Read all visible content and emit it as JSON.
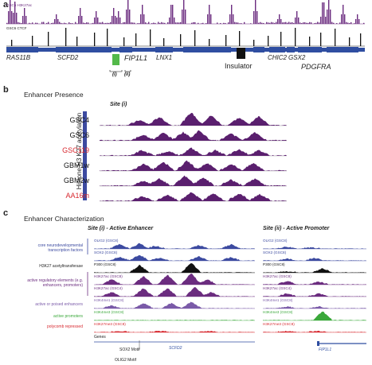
{
  "panel_a": {
    "letter": "a",
    "track_labels": [
      "GSC6 H3K27ac",
      "GSC6 CTCF"
    ],
    "genes": [
      "RAS11B",
      "SCFD2",
      "FIP1L1",
      "LNX1",
      "CHIC2",
      "GSX2",
      "PDGFRA"
    ],
    "site_labels": [
      "(i)",
      "(ii)"
    ],
    "insulator_label": "Insulator",
    "colors": {
      "h3k27ac": "#6b2c7f",
      "ctcf": "#111111",
      "gene": "#2f4ea1",
      "site": "#53b94a"
    }
  },
  "panel_b": {
    "letter": "b",
    "title": "Enhancer Presence",
    "site": "Site (i)",
    "axis_label": "Histone H3 K27 acetylation",
    "rows": [
      {
        "label": "GSC4",
        "color": "#111111"
      },
      {
        "label": "GSC6",
        "color": "#111111"
      },
      {
        "label": "GSC119",
        "color": "#d7282f"
      },
      {
        "label": "GBM1w",
        "color": "#111111"
      },
      {
        "label": "GBM2w",
        "color": "#111111"
      },
      {
        "label": "AA16m",
        "color": "#d7282f"
      }
    ],
    "colors": {
      "track": "#5a1f6e",
      "bar": "#3c4aa0"
    }
  },
  "panel_c": {
    "letter": "c",
    "title": "Enhancer Characterization",
    "site_left": "Site (i) - Active Enhancer",
    "site_right": "Site (ii) - Active Promoter",
    "categories": [
      {
        "text": "core neurodevelopmental transcription factors",
        "color": "#3c4aa0"
      },
      {
        "text": "H3K27 acetyltransferase",
        "color": "#111111"
      },
      {
        "text": "active regulatory elements (e.g. enhancers, promoters)",
        "color": "#6b2c7f"
      },
      {
        "text": "active or poised enhancers",
        "color": "#7a5aa8"
      },
      {
        "text": "active promoters",
        "color": "#3aa83a"
      },
      {
        "text": "polycomb repressed",
        "color": "#d7282f"
      }
    ],
    "tracks": [
      {
        "label": "OLIG2",
        "sub": "(GSC8)",
        "color": "#3c4aa0"
      },
      {
        "label": "SOX2",
        "sub": "(GSC8)",
        "color": "#3c4aa0"
      },
      {
        "label": "P300",
        "sub": "(GSC8)",
        "color": "#111111"
      },
      {
        "label": "H3K27ac",
        "sub": "(GSC8)",
        "color": "#6b2c7f"
      },
      {
        "label": "H3K27ac",
        "sub": "(GSC4)",
        "color": "#6b2c7f"
      },
      {
        "label": "H3K4me1",
        "sub": "(GSC8)",
        "color": "#7a5aa8"
      },
      {
        "label": "H3K4me3",
        "sub": "(GSC8)",
        "color": "#3aa83a"
      },
      {
        "label": "H3K27me3",
        "sub": "(GSC8)",
        "color": "#d7282f"
      }
    ],
    "genes_label": "Genes",
    "gene_left": "SCFD2",
    "gene_right": "FIP1L1",
    "motifs": [
      "SOX2 Motif",
      "OLIG2 Motif"
    ]
  }
}
